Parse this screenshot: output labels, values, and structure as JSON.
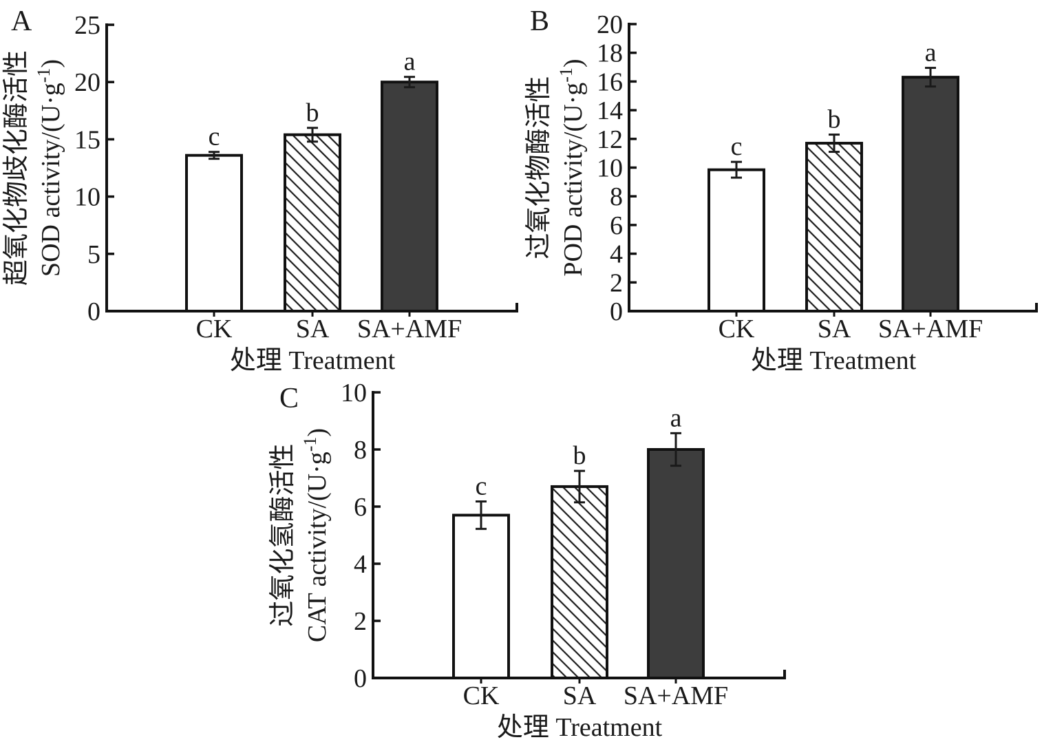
{
  "colors": {
    "ink": "#1a1a1a",
    "axis": "#111111",
    "bar_dark_fill": "#3d3d3d",
    "bar_white_fill": "#ffffff",
    "background": "#ffffff"
  },
  "figure": {
    "x_axis_title": "处理 Treatment",
    "categories": [
      "CK",
      "SA",
      "SA+AMF"
    ]
  },
  "chart_data": [
    {
      "type": "bar",
      "panel": "A",
      "ylabel_cn": "超氧化物歧化酶活性",
      "ylabel_en": {
        "main": "SOD activity/(U·g",
        "sup": "-1",
        "close": ")"
      },
      "xlabel": "处理 Treatment",
      "categories": [
        "CK",
        "SA",
        "SA+AMF"
      ],
      "values": [
        13.6,
        15.4,
        20.0
      ],
      "errors": [
        0.3,
        0.6,
        0.45
      ],
      "sig_letters": [
        "c",
        "b",
        "a"
      ],
      "bar_styles": [
        "white",
        "hatch",
        "dark"
      ],
      "ylim": [
        0,
        25
      ],
      "ytick_interval": 5,
      "grid": false
    },
    {
      "type": "bar",
      "panel": "B",
      "ylabel_cn": "过氧化物酶活性",
      "ylabel_en": {
        "main": "POD activity/(U·g",
        "sup": "-1",
        "close": ")"
      },
      "xlabel": "处理 Treatment",
      "categories": [
        "CK",
        "SA",
        "SA+AMF"
      ],
      "values": [
        9.85,
        11.7,
        16.3
      ],
      "errors": [
        0.55,
        0.6,
        0.65
      ],
      "sig_letters": [
        "c",
        "b",
        "a"
      ],
      "bar_styles": [
        "white",
        "hatch",
        "dark"
      ],
      "ylim": [
        0,
        20
      ],
      "ytick_interval": 2,
      "grid": false
    },
    {
      "type": "bar",
      "panel": "C",
      "ylabel_cn": "过氧化氢酶活性",
      "ylabel_en": {
        "main": "CAT activity/(U·g",
        "sup": "-1",
        "close": ")"
      },
      "xlabel": "处理 Treatment",
      "categories": [
        "CK",
        "SA",
        "SA+AMF"
      ],
      "values": [
        5.7,
        6.7,
        8.0
      ],
      "errors": [
        0.48,
        0.55,
        0.57
      ],
      "sig_letters": [
        "c",
        "b",
        "a"
      ],
      "bar_styles": [
        "white",
        "hatch",
        "dark"
      ],
      "ylim": [
        0,
        10
      ],
      "ytick_interval": 2,
      "grid": false
    }
  ]
}
